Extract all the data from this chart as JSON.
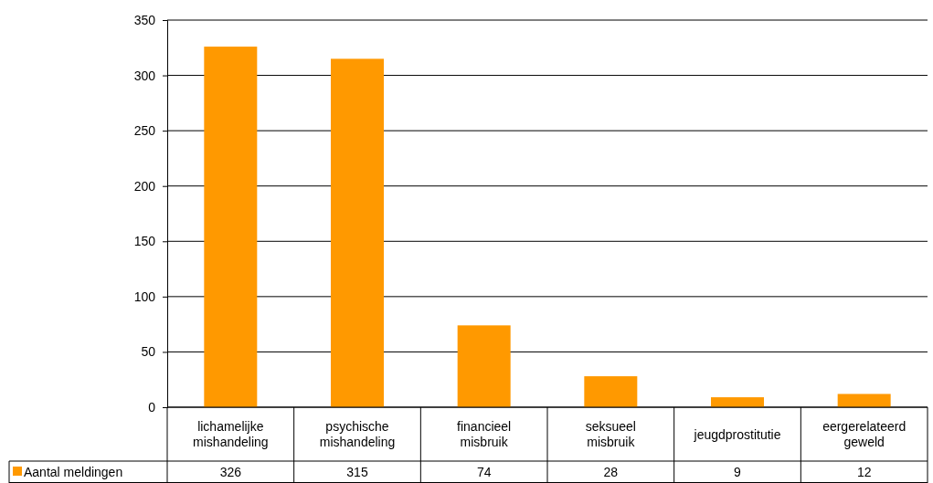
{
  "chart_data": {
    "type": "bar",
    "categories": [
      "lichamelijke mishandeling",
      "psychische mishandeling",
      "financieel misbruik",
      "seksueel misbruik",
      "jeugdprostitutie",
      "eergerelateerd geweld"
    ],
    "series": [
      {
        "name": "Aantal meldingen",
        "color": "#ff9900",
        "values": [
          326,
          315,
          74,
          28,
          9,
          12
        ]
      }
    ],
    "ylim": [
      0,
      350
    ],
    "yticks": [
      0,
      50,
      100,
      150,
      200,
      250,
      300,
      350
    ],
    "grid": "y",
    "legend": "bottom left",
    "data_labels": true
  }
}
